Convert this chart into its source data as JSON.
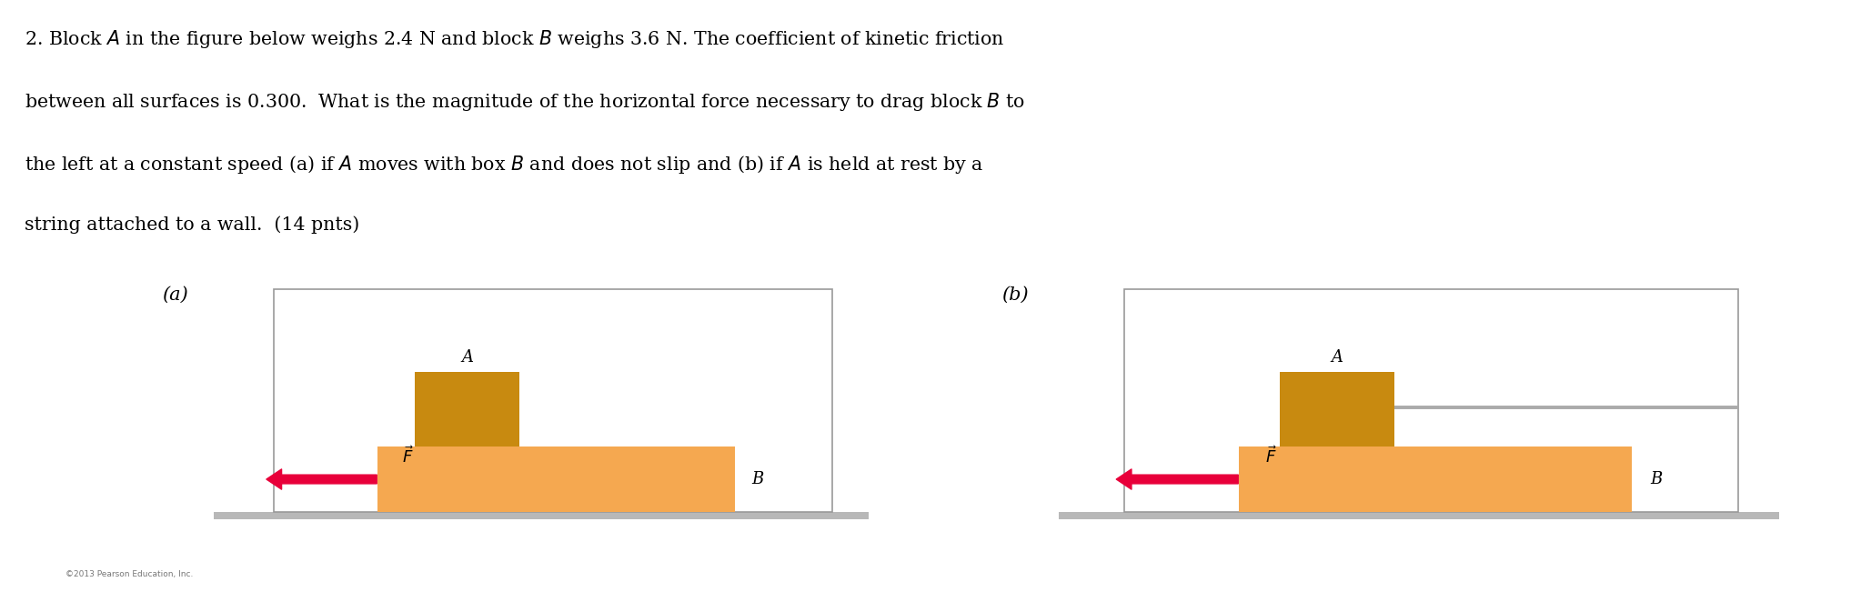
{
  "bg_color": "#ffffff",
  "text_color": "#000000",
  "block_B_color": "#f5a850",
  "block_A_color": "#c88a10",
  "floor_color": "#bbbbbb",
  "arrow_color": "#e8003a",
  "label_a": "(a)",
  "label_b": "(b)",
  "label_A": "A",
  "label_B": "B",
  "copyright_text": "©2013 Pearson Education, Inc.",
  "problem_lines": [
    "2. Block $\\mathit{A}$ in the figure below weighs 2.4 N and block $\\mathit{B}$ weighs 3.6 N. The coefficient of kinetic friction",
    "between all surfaces is 0.300.  What is the magnitude of the horizontal force necessary to drag block $\\mathit{B}$ to",
    "the left at a constant speed (a) if $\\mathit{A}$ moves with box $\\mathit{B}$ and does not slip and (b) if $\\mathit{A}$ is held at rest by a",
    "string attached to a wall.  (14 pnts)"
  ]
}
